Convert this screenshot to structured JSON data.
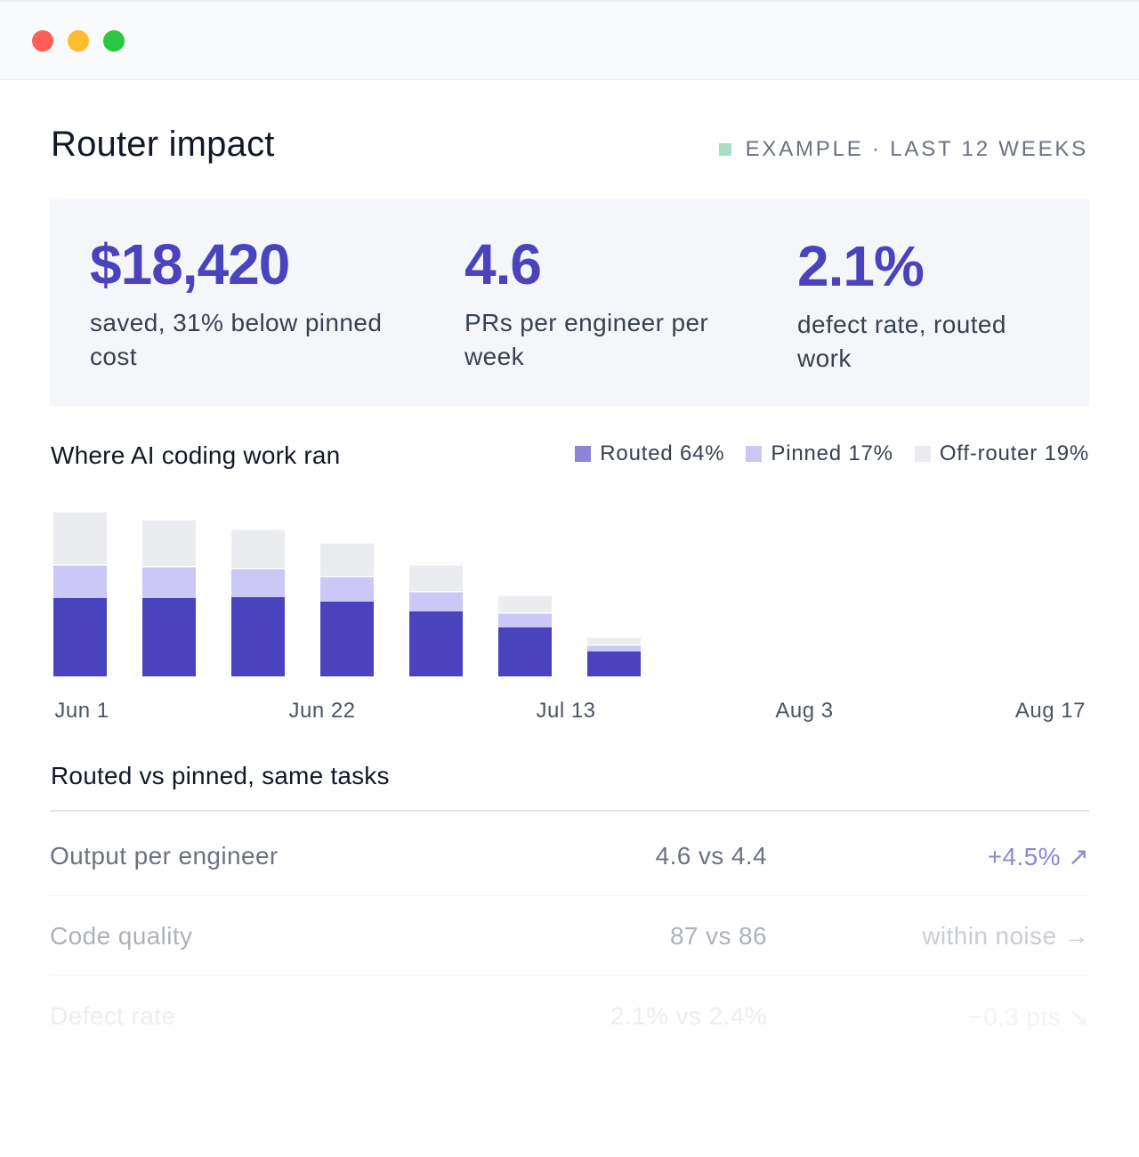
{
  "window": {
    "controls": [
      "close",
      "minimize",
      "maximize"
    ]
  },
  "header": {
    "title": "Router impact",
    "tag": "EXAMPLE · LAST 12 WEEKS",
    "tag_color": "#a7dfc4"
  },
  "stats": [
    {
      "value": "$18,420",
      "label": "saved, 31% below pinned cost"
    },
    {
      "value": "4.6",
      "label": "PRs per engineer per week"
    },
    {
      "value": "2.1%",
      "label": "defect rate, routed work"
    }
  ],
  "usage": {
    "title": "Where AI coding work ran",
    "legend": [
      {
        "label": "Routed 64%",
        "color": "#8b87d6"
      },
      {
        "label": "Pinned 17%",
        "color": "#cbc8f7"
      },
      {
        "label": "Off-router 19%",
        "color": "#ebecef"
      }
    ]
  },
  "chart_data": {
    "type": "bar",
    "stacked": true,
    "x_ticks": [
      "Jun 1",
      "Jun 22",
      "Jul 13",
      "Aug 3",
      "Aug 17"
    ],
    "series": [
      {
        "name": "Routed",
        "color": "#4a43bd",
        "values": [
          88,
          88,
          89,
          84,
          73,
          55,
          28
        ]
      },
      {
        "name": "Pinned",
        "color": "#cbc8f7",
        "values": [
          38,
          36,
          33,
          29,
          23,
          17,
          8
        ]
      },
      {
        "name": "Off-router",
        "color": "#ebecef",
        "values": [
          60,
          53,
          44,
          38,
          30,
          20,
          9
        ]
      }
    ],
    "total_slots": 12,
    "ylim": [
      0,
      190
    ],
    "grid": false
  },
  "comparison": {
    "title": "Routed vs pinned, same tasks",
    "rows": [
      {
        "metric": "Output per engineer",
        "comparison": "4.6 vs 4.4",
        "delta": "+4.5% ↗",
        "opacity": 1,
        "delta_color": "#8b87d6"
      },
      {
        "metric": "Code quality",
        "comparison": "87 vs 86",
        "delta": "within noise →",
        "opacity": 0.55,
        "delta_color": "#9ca3af"
      },
      {
        "metric": "Defect rate",
        "comparison": "2.1% vs 2.4%",
        "delta": "−0.3 pts ↘",
        "opacity": 0.12,
        "delta_color": "#9ca3af"
      }
    ]
  }
}
